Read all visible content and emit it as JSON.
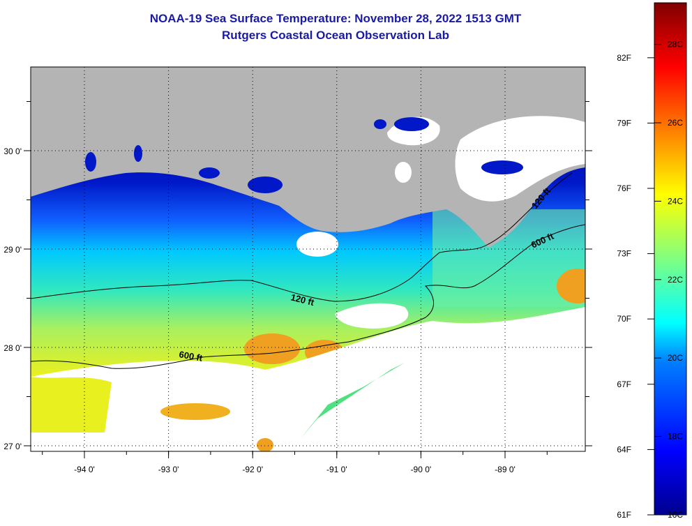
{
  "title_line1": "NOAA-19 Sea Surface Temperature:  November 28, 2022 1513 GMT",
  "title_line2": "Rutgers Coastal Ocean Observation Lab",
  "map": {
    "lon_ticks": [
      {
        "value": -94,
        "label": "-94 0'"
      },
      {
        "value": -93,
        "label": "-93 0'"
      },
      {
        "value": -92,
        "label": "-92 0'"
      },
      {
        "value": -91,
        "label": "-91 0'"
      },
      {
        "value": -90,
        "label": "-90 0'"
      },
      {
        "value": -89,
        "label": "-89 0'"
      }
    ],
    "lat_ticks": [
      {
        "value": 30,
        "label": "30 0'"
      },
      {
        "value": 29,
        "label": "29 0'"
      },
      {
        "value": 28,
        "label": "28 0'"
      },
      {
        "value": 27,
        "label": "27 0'"
      }
    ],
    "contours": {
      "shallow_label": "120 ft",
      "deep_label": "600 ft"
    }
  },
  "colorbar": {
    "fahrenheit": [
      {
        "value": 82,
        "label": "82F"
      },
      {
        "value": 79,
        "label": "79F"
      },
      {
        "value": 76,
        "label": "76F"
      },
      {
        "value": 73,
        "label": "73F"
      },
      {
        "value": 70,
        "label": "70F"
      },
      {
        "value": 67,
        "label": "67F"
      },
      {
        "value": 64,
        "label": "64F"
      },
      {
        "value": 61,
        "label": "61F"
      }
    ],
    "celsius": [
      {
        "value": 28,
        "label": "28C"
      },
      {
        "value": 26,
        "label": "26C"
      },
      {
        "value": 24,
        "label": "24C"
      },
      {
        "value": 22,
        "label": "22C"
      },
      {
        "value": 20,
        "label": "20C"
      },
      {
        "value": 18,
        "label": "18C"
      },
      {
        "value": 16,
        "label": "16C"
      }
    ]
  },
  "colors": {
    "land": "#b4b4b4",
    "cloud": "#ffffff",
    "title": "#1a1aa8"
  }
}
